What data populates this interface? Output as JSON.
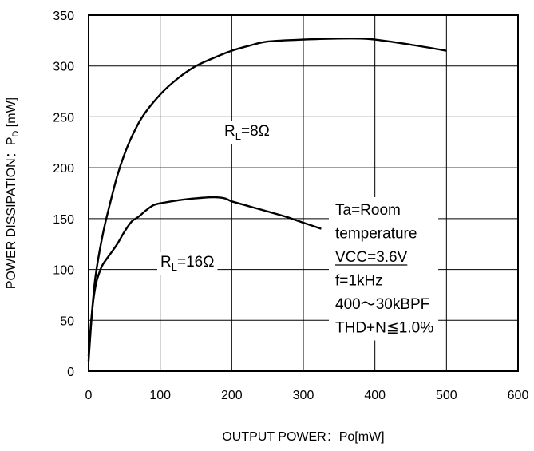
{
  "chart_data": {
    "type": "line",
    "xlabel": "OUTPUT POWER：Po[mW]",
    "ylabel": "POWER DISSIPATION：P_D [mW]",
    "xlabel_parts": {
      "main": "OUTPUT POWER：Po[mW]"
    },
    "ylabel_parts": {
      "main": "POWER DISSIPATION：P",
      "sub": "D",
      "unit": " [mW]"
    },
    "xlim": [
      0,
      600
    ],
    "ylim": [
      0,
      350
    ],
    "xticks": [
      0,
      100,
      200,
      300,
      400,
      500,
      600
    ],
    "yticks": [
      0,
      50,
      100,
      150,
      200,
      250,
      300,
      350
    ],
    "grid": true,
    "series": [
      {
        "name": "RL=8Ω",
        "label_parts": {
          "main": "R",
          "sub": "L",
          "rest": "=8Ω"
        },
        "x": [
          0,
          5,
          10,
          20,
          30,
          40,
          50,
          60,
          75,
          100,
          125,
          150,
          175,
          200,
          225,
          250,
          300,
          350,
          380,
          400,
          450,
          500
        ],
        "y": [
          10,
          60,
          95,
          135,
          165,
          192,
          213,
          230,
          250,
          272,
          288,
          300,
          308,
          315,
          320,
          324,
          326,
          327,
          327,
          326,
          321,
          315
        ]
      },
      {
        "name": "RL=16Ω",
        "label_parts": {
          "main": "R",
          "sub": "L",
          "rest": "=16Ω"
        },
        "x": [
          0,
          5,
          10,
          15,
          20,
          30,
          40,
          50,
          60,
          70,
          80,
          90,
          100,
          125,
          150,
          175,
          190,
          200,
          225,
          250,
          275,
          300,
          325
        ],
        "y": [
          15,
          60,
          85,
          97,
          105,
          115,
          125,
          137,
          147,
          152,
          158,
          163,
          165,
          168,
          170,
          171,
          170,
          167,
          162,
          157,
          152,
          146,
          140
        ]
      }
    ],
    "annotation_lines": [
      {
        "text": "Ta=Room",
        "underline": false
      },
      {
        "text": "temperature",
        "underline": false
      },
      {
        "text": "VCC=3.6V",
        "underline": true
      },
      {
        "text": "f=1kHz",
        "underline": false
      },
      {
        "text": "400～30kBPF",
        "underline": false
      },
      {
        "text": "THD+N≦1.0%",
        "underline": false
      }
    ]
  }
}
